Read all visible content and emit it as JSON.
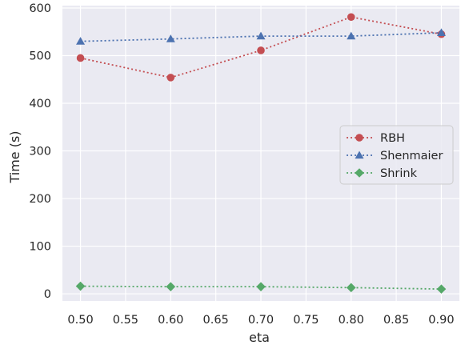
{
  "chart_data": {
    "type": "line",
    "title": "",
    "xlabel": "eta",
    "ylabel": "Time (s)",
    "xlim": [
      0.48,
      0.92
    ],
    "ylim": [
      -15,
      605
    ],
    "xticks": [
      "0.50",
      "0.55",
      "0.60",
      "0.65",
      "0.70",
      "0.75",
      "0.80",
      "0.85",
      "0.90"
    ],
    "yticks": [
      "0",
      "100",
      "200",
      "300",
      "400",
      "500",
      "600"
    ],
    "grid": true,
    "legend_position": "center-right",
    "x": [
      0.5,
      0.6,
      0.7,
      0.8,
      0.9
    ],
    "series": [
      {
        "name": "RBH",
        "values": [
          495,
          454,
          511,
          581,
          545
        ],
        "color": "#c44e52",
        "marker": "circle",
        "linestyle": "dotted"
      },
      {
        "name": "Shenmaier",
        "values": [
          530,
          535,
          541,
          541,
          548
        ],
        "color": "#4c72b0",
        "marker": "triangle",
        "linestyle": "dotted"
      },
      {
        "name": "Shrink",
        "values": [
          16,
          15,
          15,
          13,
          10
        ],
        "color": "#55a868",
        "marker": "diamond",
        "linestyle": "dotted"
      }
    ]
  },
  "colors": {
    "plot_background": "#eaeaf2",
    "grid": "#ffffff",
    "text": "#262626"
  }
}
